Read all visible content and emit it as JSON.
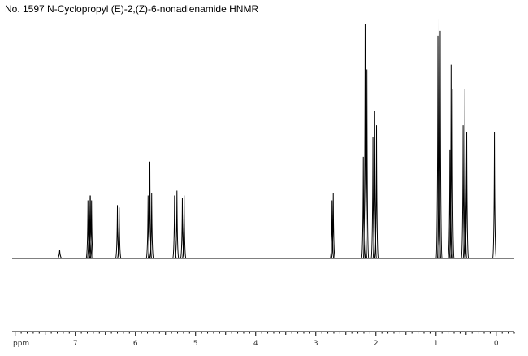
{
  "title": "No. 1597 N-Cyclopropyl (E)-2,(Z)-6-nonadienamide HNMR",
  "chart_data": {
    "type": "line",
    "title": "No. 1597 N-Cyclopropyl (E)-2,(Z)-6-nonadienamide HNMR",
    "xlabel": "ppm",
    "ylabel": "",
    "x_reversed": true,
    "xlim": [
      8.05,
      -0.3
    ],
    "ylim": [
      0,
      100
    ],
    "grid": false,
    "ticks": [
      {
        "value": 8,
        "label": "ppm"
      },
      {
        "value": 7,
        "label": "7"
      },
      {
        "value": 6,
        "label": "6"
      },
      {
        "value": 5,
        "label": "5"
      },
      {
        "value": 4,
        "label": "4"
      },
      {
        "value": 3,
        "label": "3"
      },
      {
        "value": 2,
        "label": "2"
      },
      {
        "value": 1,
        "label": "1"
      },
      {
        "value": 0,
        "label": "0"
      }
    ],
    "series": [
      {
        "peaks": [
          {
            "ppm": 7.26,
            "height": 3.5
          },
          {
            "ppm": 6.79,
            "height": 24
          },
          {
            "ppm": 6.77,
            "height": 26
          },
          {
            "ppm": 6.75,
            "height": 26
          },
          {
            "ppm": 6.73,
            "height": 24
          },
          {
            "ppm": 6.3,
            "height": 22
          },
          {
            "ppm": 6.27,
            "height": 21
          },
          {
            "ppm": 5.79,
            "height": 26
          },
          {
            "ppm": 5.76,
            "height": 40
          },
          {
            "ppm": 5.73,
            "height": 27
          },
          {
            "ppm": 5.35,
            "height": 26
          },
          {
            "ppm": 5.31,
            "height": 28
          },
          {
            "ppm": 5.22,
            "height": 25
          },
          {
            "ppm": 5.19,
            "height": 26
          },
          {
            "ppm": 2.73,
            "height": 24
          },
          {
            "ppm": 2.71,
            "height": 27
          },
          {
            "ppm": 2.21,
            "height": 42
          },
          {
            "ppm": 2.18,
            "height": 97
          },
          {
            "ppm": 2.15,
            "height": 78
          },
          {
            "ppm": 2.05,
            "height": 50
          },
          {
            "ppm": 2.02,
            "height": 61
          },
          {
            "ppm": 1.99,
            "height": 55
          },
          {
            "ppm": 0.97,
            "height": 92
          },
          {
            "ppm": 0.95,
            "height": 99
          },
          {
            "ppm": 0.93,
            "height": 94
          },
          {
            "ppm": 0.77,
            "height": 45
          },
          {
            "ppm": 0.75,
            "height": 80
          },
          {
            "ppm": 0.73,
            "height": 70
          },
          {
            "ppm": 0.55,
            "height": 55
          },
          {
            "ppm": 0.52,
            "height": 70
          },
          {
            "ppm": 0.49,
            "height": 52
          },
          {
            "ppm": 0.03,
            "height": 52
          }
        ]
      }
    ]
  }
}
